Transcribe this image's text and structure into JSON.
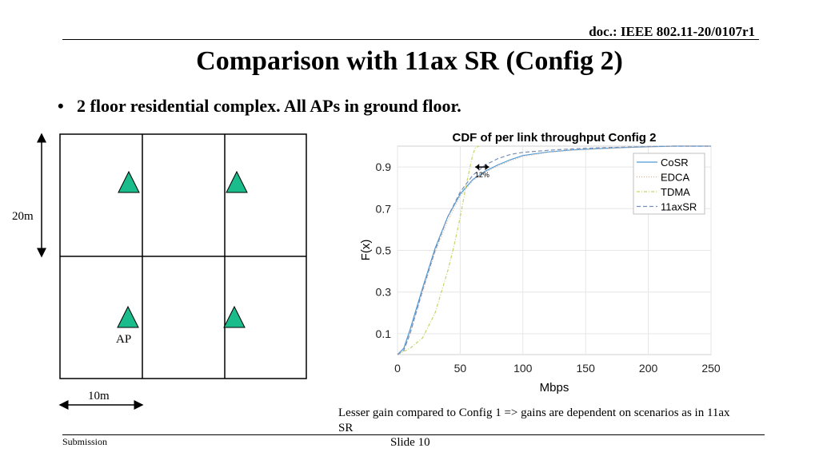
{
  "header": {
    "doc_id": "doc.: IEEE 802.11-20/0107r1"
  },
  "title": "Comparison with 11ax SR (Config 2)",
  "bullet": "2 floor residential complex. All APs in ground floor.",
  "floorplan": {
    "height_label": "20m",
    "width_label": "10m",
    "ap_label": "AP",
    "ap_color": "#1abc8c"
  },
  "chart_data": {
    "type": "line",
    "title": "CDF of per link throughput Config 2",
    "xlabel": "Mbps",
    "ylabel": "F(x)",
    "xlim": [
      0,
      250
    ],
    "ylim": [
      0,
      1
    ],
    "xticks": [
      0,
      50,
      100,
      150,
      200,
      250
    ],
    "yticks": [
      0.1,
      0.3,
      0.5,
      0.7,
      0.9
    ],
    "grid": true,
    "legend_position": "top-right",
    "annotation": {
      "text": "12%",
      "x_from": 62,
      "x_to": 73,
      "y": 0.9
    },
    "series": [
      {
        "name": "CoSR",
        "color": "#4f9bd6",
        "dash": "",
        "x": [
          0,
          5,
          10,
          20,
          30,
          40,
          50,
          60,
          70,
          80,
          90,
          100,
          120,
          140,
          160,
          180,
          200,
          220,
          250
        ],
        "y": [
          0,
          0.03,
          0.12,
          0.32,
          0.51,
          0.66,
          0.77,
          0.84,
          0.88,
          0.91,
          0.935,
          0.955,
          0.972,
          0.982,
          0.988,
          0.993,
          0.997,
          1.0,
          1.0
        ]
      },
      {
        "name": "EDCA",
        "color": "#d9b8a0",
        "dash": "1,2",
        "x": [
          0,
          5,
          10,
          20,
          30,
          40,
          50,
          60,
          70,
          80,
          90,
          100,
          120,
          140,
          160,
          180,
          200,
          220,
          250
        ],
        "y": [
          0,
          0.02,
          0.1,
          0.3,
          0.49,
          0.64,
          0.76,
          0.835,
          0.875,
          0.905,
          0.93,
          0.95,
          0.97,
          0.98,
          0.987,
          0.992,
          0.996,
          1.0,
          1.0
        ]
      },
      {
        "name": "TDMA",
        "color": "#c5d36a",
        "dash": "4,2,1,2",
        "x": [
          0,
          10,
          20,
          30,
          40,
          45,
          50,
          55,
          60,
          62,
          65
        ],
        "y": [
          0,
          0.03,
          0.08,
          0.2,
          0.4,
          0.52,
          0.66,
          0.82,
          0.96,
          0.99,
          1.0
        ]
      },
      {
        "name": "11axSR",
        "color": "#7a8fb8",
        "dash": "5,3",
        "x": [
          0,
          5,
          10,
          20,
          30,
          40,
          50,
          60,
          70,
          80,
          90,
          100,
          120,
          140,
          160,
          180,
          200,
          220,
          250
        ],
        "y": [
          0,
          0.02,
          0.1,
          0.31,
          0.5,
          0.66,
          0.78,
          0.86,
          0.91,
          0.94,
          0.96,
          0.97,
          0.98,
          0.987,
          0.992,
          0.995,
          0.998,
          1.0,
          1.0
        ]
      }
    ]
  },
  "note": "Lesser gain compared to Config 1 => gains are dependent on scenarios as in 11ax SR",
  "footer": {
    "left": "Submission",
    "center": "Slide 10"
  }
}
